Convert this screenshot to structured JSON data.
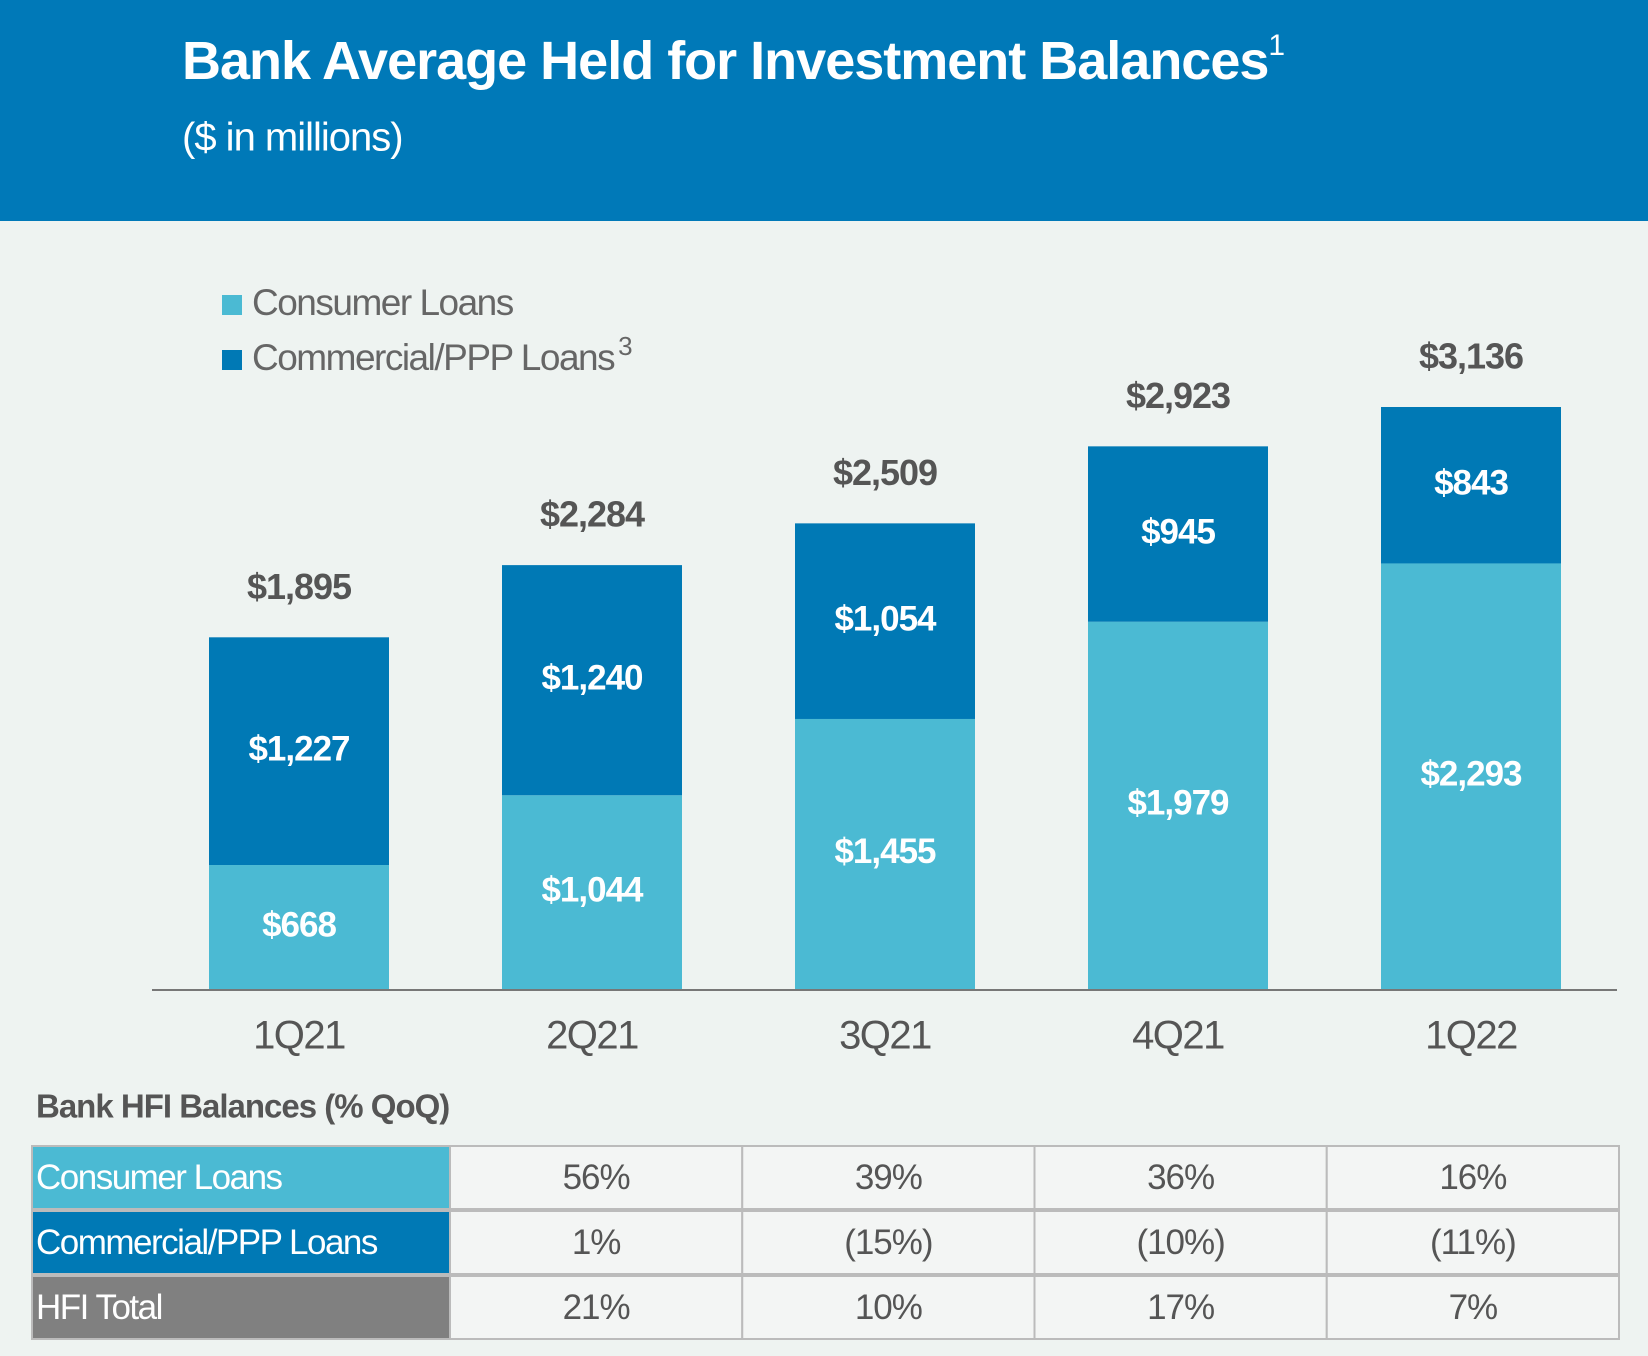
{
  "header": {
    "title": "Bank Average Held for Investment Balances",
    "title_note": "1",
    "subtitle": "($ in millions)"
  },
  "chart_data": {
    "type": "stacked_bar",
    "categories": [
      "1Q21",
      "2Q21",
      "3Q21",
      "4Q21",
      "1Q22"
    ],
    "series": [
      {
        "name": "Consumer Loans",
        "color": "#4bbad3",
        "values": [
          668,
          1044,
          1455,
          1979,
          2293
        ],
        "value_labels": [
          "$668",
          "$1,044",
          "$1,455",
          "$1,979",
          "$2,293"
        ]
      },
      {
        "name": "Commercial/PPP Loans",
        "name_note": "3",
        "color": "#0079b5",
        "values": [
          1227,
          1240,
          1054,
          945,
          843
        ],
        "value_labels": [
          "$1,227",
          "$1,240",
          "$1,054",
          "$945",
          "$843"
        ]
      }
    ],
    "totals": {
      "values": [
        1895,
        2284,
        2509,
        2923,
        3136
      ],
      "value_labels": [
        "$1,895",
        "$2,284",
        "$2,509",
        "$2,923",
        "$3,136"
      ]
    }
  },
  "table": {
    "title": "Bank HFI Balances (% QoQ)",
    "rows": [
      {
        "label": "Consumer Loans",
        "color": "#4bbad3",
        "cells": [
          "56%",
          "39%",
          "36%",
          "16%"
        ]
      },
      {
        "label": "Commercial/PPP Loans",
        "color": "#0079b5",
        "cells": [
          "1%",
          "(15%)",
          "(10%)",
          "(11%)"
        ]
      },
      {
        "label": "HFI Total",
        "color": "#808080",
        "cells": [
          "21%",
          "10%",
          "17%",
          "7%"
        ]
      }
    ]
  }
}
